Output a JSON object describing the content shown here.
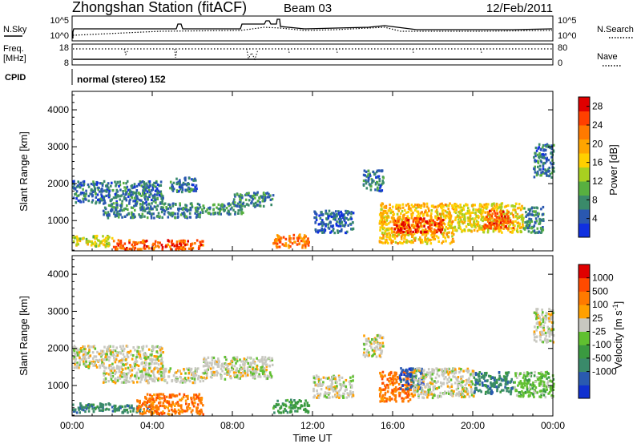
{
  "header": {
    "title": "Zhongshan Station (fitACF)",
    "beam": "Beam 03",
    "date": "12/Feb/2011"
  },
  "summary_panels": {
    "nsky_label": "N.Sky",
    "nsky_ticks": [
      "10^5",
      "10^0"
    ],
    "nsearch_label": "N.Search",
    "nsearch_ticks": [
      "10^5",
      "10^0"
    ],
    "freq_label": "Freq.",
    "freq_unit": "[MHz]",
    "freq_ticks": [
      "18",
      "8"
    ],
    "nave_label": "Nave",
    "nave_ticks": [
      "80",
      "0"
    ],
    "cpid_label": "CPID",
    "cpid_text": "normal (stereo) 152"
  },
  "chart_data": [
    {
      "type": "heatmap",
      "title": "",
      "parameter": "Power",
      "unit": "[dB]",
      "xlabel": "",
      "ylabel": "Slant Range [km]",
      "x_ticks": [
        "00:00",
        "04:00",
        "08:00",
        "12:00",
        "16:00",
        "20:00",
        "00:00"
      ],
      "xlim_hours": [
        0,
        24
      ],
      "y_ticks": [
        1000,
        2000,
        3000,
        4000
      ],
      "ylim": [
        180,
        4500
      ],
      "colorbar": {
        "ticks": [
          4,
          8,
          12,
          16,
          20,
          24,
          28
        ],
        "range": [
          0,
          30
        ],
        "colors": [
          "#1030e0",
          "#2a58b0",
          "#3a8a6a",
          "#58b040",
          "#a8d020",
          "#ffd000",
          "#ffa500",
          "#ff7a00",
          "#ff4000",
          "#e00000"
        ]
      },
      "regions": [
        {
          "t": [
            0.0,
            4.5
          ],
          "r": [
            1500,
            2100
          ],
          "level": 6
        },
        {
          "t": [
            1.5,
            6.5
          ],
          "r": [
            1100,
            1500
          ],
          "level": 7
        },
        {
          "t": [
            0.0,
            2.0
          ],
          "r": [
            320,
            620
          ],
          "level": 15
        },
        {
          "t": [
            2.0,
            6.5
          ],
          "r": [
            250,
            500
          ],
          "level": 24
        },
        {
          "t": [
            4.8,
            6.2
          ],
          "r": [
            1800,
            2200
          ],
          "level": 6
        },
        {
          "t": [
            6.5,
            8.5
          ],
          "r": [
            1200,
            1500
          ],
          "level": 8
        },
        {
          "t": [
            8.0,
            10.0
          ],
          "r": [
            1400,
            1800
          ],
          "level": 7
        },
        {
          "t": [
            10.0,
            11.8
          ],
          "r": [
            300,
            650
          ],
          "level": 22
        },
        {
          "t": [
            12.0,
            14.0
          ],
          "r": [
            700,
            1300
          ],
          "level": 5
        },
        {
          "t": [
            14.5,
            15.5
          ],
          "r": [
            1800,
            2400
          ],
          "level": 6
        },
        {
          "t": [
            15.3,
            19.0
          ],
          "r": [
            400,
            1500
          ],
          "level": 18
        },
        {
          "t": [
            16.0,
            18.5
          ],
          "r": [
            700,
            1100
          ],
          "level": 26
        },
        {
          "t": [
            19.0,
            22.5
          ],
          "r": [
            700,
            1500
          ],
          "level": 16
        },
        {
          "t": [
            20.5,
            22.0
          ],
          "r": [
            800,
            1300
          ],
          "level": 24
        },
        {
          "t": [
            22.5,
            23.5
          ],
          "r": [
            700,
            1400
          ],
          "level": 7
        },
        {
          "t": [
            23.0,
            24.0
          ],
          "r": [
            2200,
            3100
          ],
          "level": 6
        }
      ]
    },
    {
      "type": "heatmap",
      "title": "",
      "parameter": "Velocity",
      "unit": "[m s^-1]",
      "xlabel": "Time UT",
      "ylabel": "Slant Range [km]",
      "x_ticks": [
        "00:00",
        "04:00",
        "08:00",
        "12:00",
        "16:00",
        "20:00",
        "00:00"
      ],
      "xlim_hours": [
        0,
        24
      ],
      "y_ticks": [
        1000,
        2000,
        3000,
        4000
      ],
      "ylim": [
        180,
        4500
      ],
      "colorbar": {
        "ticks": [
          "1000",
          "500",
          "100",
          "25",
          "-25",
          "-100",
          "-500",
          "-1000"
        ],
        "colors": [
          "#1030d0",
          "#2a5ab0",
          "#3a8a6a",
          "#3a9a40",
          "#60c030",
          "#c8c8c0",
          "#ffa000",
          "#ff7a00",
          "#ff4a00",
          "#e00000"
        ]
      },
      "regions": [
        {
          "t": [
            0.0,
            4.5
          ],
          "r": [
            1500,
            2100
          ],
          "level": 5
        },
        {
          "t": [
            1.5,
            6.5
          ],
          "r": [
            1100,
            1500
          ],
          "level": 5
        },
        {
          "t": [
            0.0,
            2.0
          ],
          "r": [
            300,
            550
          ],
          "level": 2
        },
        {
          "t": [
            2.0,
            4.0
          ],
          "r": [
            300,
            500
          ],
          "level": 2
        },
        {
          "t": [
            3.2,
            6.5
          ],
          "r": [
            250,
            800
          ],
          "level": 7
        },
        {
          "t": [
            6.5,
            10.0
          ],
          "r": [
            1200,
            1800
          ],
          "level": 5
        },
        {
          "t": [
            10.0,
            11.8
          ],
          "r": [
            300,
            650
          ],
          "level": 3
        },
        {
          "t": [
            12.0,
            14.0
          ],
          "r": [
            700,
            1300
          ],
          "level": 5
        },
        {
          "t": [
            14.5,
            15.5
          ],
          "r": [
            1800,
            2400
          ],
          "level": 5
        },
        {
          "t": [
            15.3,
            17.0
          ],
          "r": [
            600,
            1400
          ],
          "level": 7
        },
        {
          "t": [
            16.3,
            17.5
          ],
          "r": [
            900,
            1500
          ],
          "level": 1
        },
        {
          "t": [
            17.0,
            20.0
          ],
          "r": [
            700,
            1500
          ],
          "level": 5
        },
        {
          "t": [
            20.0,
            22.0
          ],
          "r": [
            800,
            1400
          ],
          "level": 2
        },
        {
          "t": [
            22.0,
            24.0
          ],
          "r": [
            700,
            1400
          ],
          "level": 4
        },
        {
          "t": [
            23.0,
            24.0
          ],
          "r": [
            2200,
            3100
          ],
          "level": 5
        }
      ]
    }
  ]
}
